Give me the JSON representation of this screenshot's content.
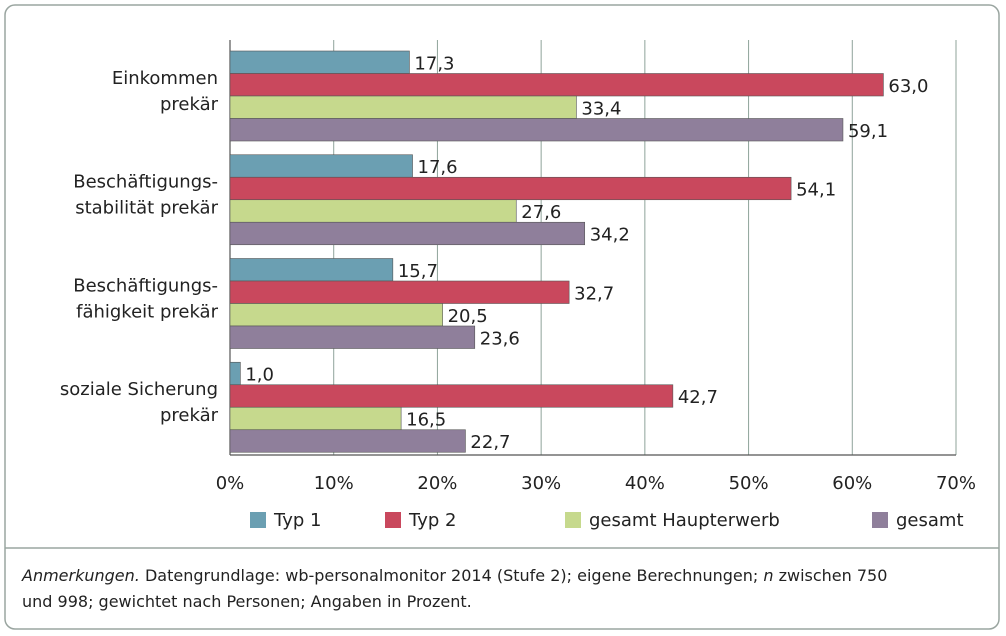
{
  "chart_data": {
    "type": "hbar",
    "categories": [
      "Einkommen\nprekär",
      "Beschäftigungs-\nstabilität prekär",
      "Beschäftigungs-\nfähigkeit prekär",
      "soziale Sicherung\nprekär"
    ],
    "series": [
      {
        "name": "Typ 1",
        "color": "#6b9fb2",
        "values": [
          17.3,
          17.6,
          15.7,
          1.0
        ],
        "value_labels": [
          "17,3",
          "17,6",
          "15,7",
          "1,0"
        ]
      },
      {
        "name": "Typ 2",
        "color": "#c9485d",
        "values": [
          63.0,
          54.1,
          32.7,
          42.7
        ],
        "value_labels": [
          "63,0",
          "54,1",
          "32,7",
          "42,7"
        ]
      },
      {
        "name": "gesamt Haupterwerb",
        "color": "#c6d98d",
        "values": [
          33.4,
          27.6,
          20.5,
          16.5
        ],
        "value_labels": [
          "33,4",
          "27,6",
          "20,5",
          "16,5"
        ]
      },
      {
        "name": "gesamt",
        "color": "#8f7f9b",
        "values": [
          59.1,
          34.2,
          23.6,
          22.7
        ],
        "value_labels": [
          "59,1",
          "34,2",
          "23,6",
          "22,7"
        ]
      }
    ],
    "xlim": [
      0,
      70
    ],
    "xticks": [
      {
        "value": 0,
        "label": "0%"
      },
      {
        "value": 10,
        "label": "10%"
      },
      {
        "value": 20,
        "label": "20%"
      },
      {
        "value": 30,
        "label": "30%"
      },
      {
        "value": 40,
        "label": "40%"
      },
      {
        "value": 50,
        "label": "50%"
      },
      {
        "value": 60,
        "label": "60%"
      },
      {
        "value": 70,
        "label": "70%"
      }
    ],
    "grid": true,
    "legend": "bottom"
  },
  "note": {
    "label": "Anmerkungen.",
    "text_1": "Datengrundlage: wb-personalmonitor 2014 (Stufe 2); eigene Berechnungen;",
    "italic": "n",
    "text_2": "zwischen 750",
    "text_3": "und 998; gewichtet nach Personen; Angaben in Prozent."
  }
}
